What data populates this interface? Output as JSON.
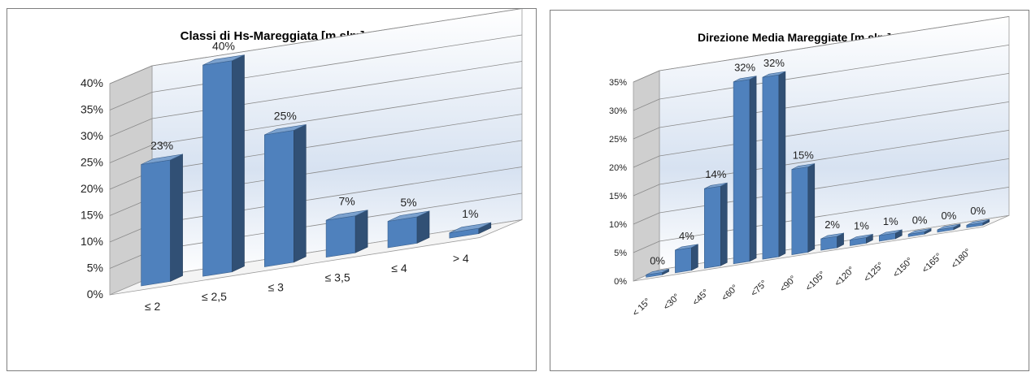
{
  "chart_data": [
    {
      "type": "bar",
      "title": "Classi di Hs-Mareggiata  [m slm]",
      "categories": [
        "≤ 2",
        "≤ 2,5",
        "≤ 3",
        "≤ 3,5",
        "≤ 4",
        "> 4"
      ],
      "values": [
        23,
        40,
        25,
        7,
        5,
        1
      ],
      "data_labels": [
        "23%",
        "40%",
        "25%",
        "7%",
        "5%",
        "1%"
      ],
      "yticks": [
        "0%",
        "5%",
        "10%",
        "15%",
        "20%",
        "25%",
        "30%",
        "35%",
        "40%"
      ],
      "ylim": [
        0,
        40
      ],
      "grid": true,
      "style": "3d-column",
      "bar_color": "#4f81bd"
    },
    {
      "type": "bar",
      "title": "Direzione Media Mareggiate  [m slm]",
      "categories": [
        "< 15°",
        "<30°",
        "<45°",
        "<60°",
        "<75°",
        "<90°",
        "<105°",
        "<120°",
        "<125°",
        "<150°",
        "<165°",
        "<180°"
      ],
      "values": [
        0,
        4,
        14,
        32,
        32,
        15,
        2,
        1,
        1,
        0,
        0,
        0
      ],
      "data_labels": [
        "0%",
        "4%",
        "14%",
        "32%",
        "32%",
        "15%",
        "2%",
        "1%",
        "1%",
        "0%",
        "0%",
        "0%"
      ],
      "yticks": [
        "0%",
        "5%",
        "10%",
        "15%",
        "20%",
        "25%",
        "30%",
        "35%"
      ],
      "ylim": [
        0,
        35
      ],
      "grid": true,
      "style": "3d-column",
      "bar_color": "#4f81bd"
    }
  ]
}
